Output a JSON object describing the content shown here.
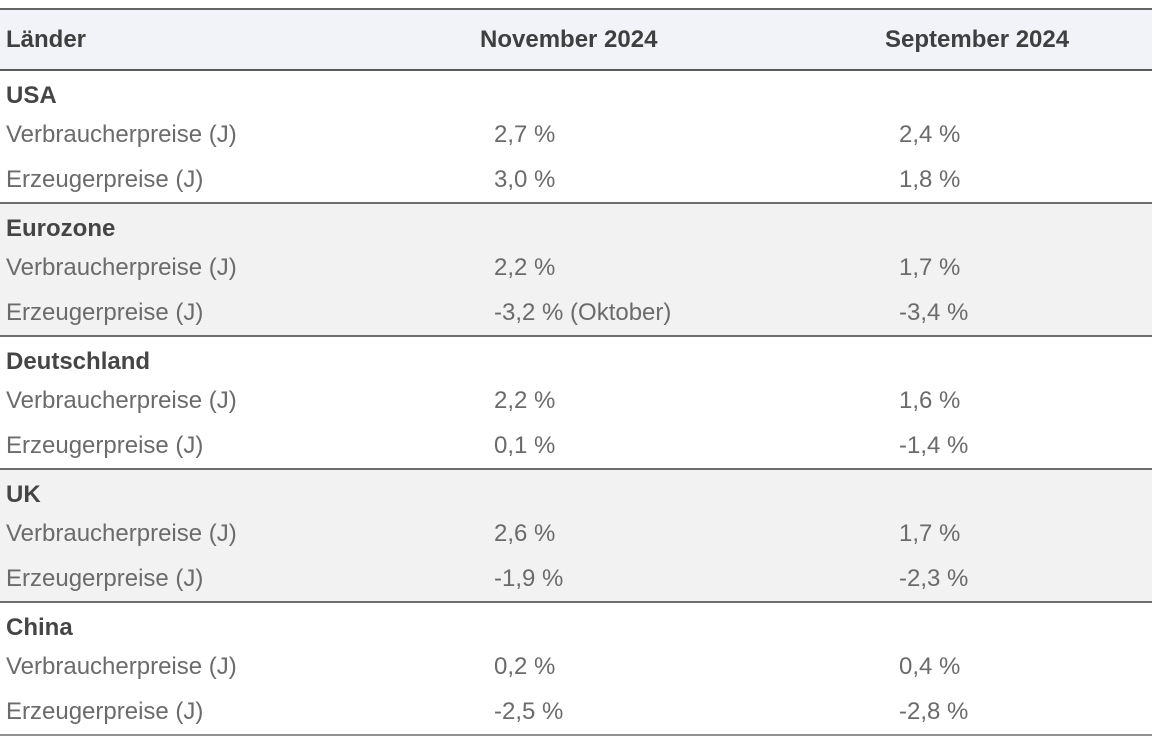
{
  "table": {
    "header": {
      "country_col": "Länder",
      "period1": "November 2024",
      "period2": "September 2024"
    },
    "sections": [
      {
        "country": "USA",
        "rows": [
          {
            "label": "Verbraucherpreise (J)",
            "nov": "2,7 %",
            "sep": "2,4 %"
          },
          {
            "label": "Erzeugerpreise (J)",
            "nov": "3,0 %",
            "sep": "1,8 %"
          }
        ]
      },
      {
        "country": "Eurozone",
        "rows": [
          {
            "label": "Verbraucherpreise (J)",
            "nov": "2,2 %",
            "sep": "1,7 %"
          },
          {
            "label": "Erzeugerpreise (J)",
            "nov": "-3,2 % (Oktober)",
            "sep": "-3,4 %"
          }
        ]
      },
      {
        "country": "Deutschland",
        "rows": [
          {
            "label": "Verbraucherpreise (J)",
            "nov": "2,2 %",
            "sep": "1,6 %"
          },
          {
            "label": "Erzeugerpreise (J)",
            "nov": "0,1 %",
            "sep": "-1,4 %"
          }
        ]
      },
      {
        "country": "UK",
        "rows": [
          {
            "label": "Verbraucherpreise (J)",
            "nov": "2,6 %",
            "sep": "1,7 %"
          },
          {
            "label": "Erzeugerpreise (J)",
            "nov": "-1,9 %",
            "sep": "-2,3 %"
          }
        ]
      },
      {
        "country": "China",
        "rows": [
          {
            "label": "Verbraucherpreise (J)",
            "nov": "0,2 %",
            "sep": "0,4 %"
          },
          {
            "label": "Erzeugerpreise (J)",
            "nov": "-2,5 %",
            "sep": "-2,8 %"
          }
        ]
      }
    ]
  },
  "colors": {
    "header_bg": "#f1f3f8",
    "alt_section_bg": "#f2f2f2",
    "heading_text": "#3f3f3f",
    "body_text": "#6b6b6b",
    "header_divider": "#585858",
    "section_divider": "#6e6e6e",
    "bottom_border": "#919191"
  },
  "chart_data": {
    "type": "table",
    "title": "",
    "columns": [
      "Länder",
      "November 2024",
      "September 2024"
    ],
    "rows": [
      [
        "USA",
        "",
        ""
      ],
      [
        "Verbraucherpreise (J)",
        "2,7 %",
        "2,4 %"
      ],
      [
        "Erzeugerpreise (J)",
        "3,0 %",
        "1,8 %"
      ],
      [
        "Eurozone",
        "",
        ""
      ],
      [
        "Verbraucherpreise (J)",
        "2,2 %",
        "1,7 %"
      ],
      [
        "Erzeugerpreise (J)",
        "-3,2 % (Oktober)",
        "-3,4 %"
      ],
      [
        "Deutschland",
        "",
        ""
      ],
      [
        "Verbraucherpreise (J)",
        "2,2 %",
        "1,6 %"
      ],
      [
        "Erzeugerpreise (J)",
        "0,1 %",
        "-1,4 %"
      ],
      [
        "UK",
        "",
        ""
      ],
      [
        "Verbraucherpreise (J)",
        "2,6 %",
        "1,7 %"
      ],
      [
        "Erzeugerpreise (J)",
        "-1,9 %",
        "-2,3 %"
      ],
      [
        "China",
        "",
        ""
      ],
      [
        "Verbraucherpreise (J)",
        "0,2 %",
        "0,4 %"
      ],
      [
        "Erzeugerpreise (J)",
        "-2,5 %",
        "-2,8 %"
      ]
    ]
  }
}
